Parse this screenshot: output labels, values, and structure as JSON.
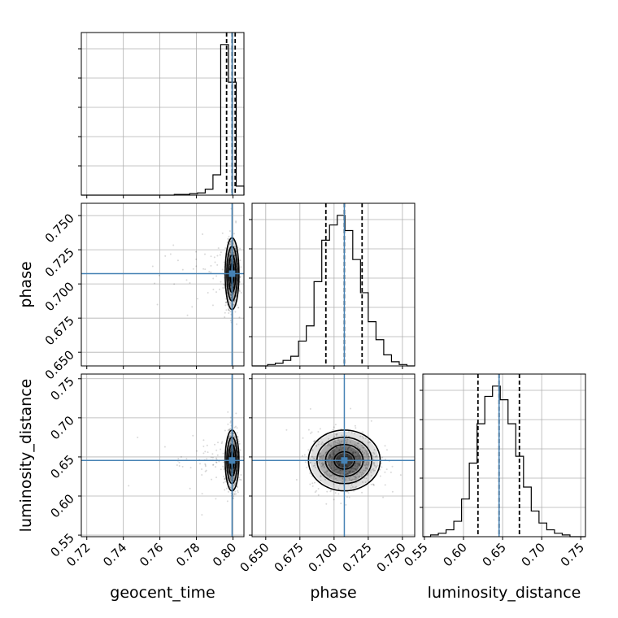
{
  "chart_data": {
    "type": "corner",
    "parameters": [
      "geocent_time",
      "phase",
      "luminosity_distance"
    ],
    "ticks": {
      "geocent_time": [
        "0.72",
        "0.74",
        "0.76",
        "0.78",
        "0.80"
      ],
      "phase": [
        "0.650",
        "0.675",
        "0.700",
        "0.725",
        "0.750"
      ],
      "luminosity_distance": [
        "0.55",
        "0.60",
        "0.65",
        "0.70",
        "0.75"
      ]
    },
    "ranges": {
      "geocent_time": [
        0.717,
        0.806
      ],
      "phase": [
        0.64,
        0.759
      ],
      "luminosity_distance": [
        0.548,
        0.756
      ]
    },
    "truths": {
      "geocent_time": 0.7995,
      "phase": 0.7075,
      "luminosity_distance": 0.6455
    },
    "quantiles": {
      "geocent_time": [
        0.7965,
        0.7995,
        0.8012
      ],
      "phase": [
        0.694,
        0.7075,
        0.7205
      ],
      "luminosity_distance": [
        0.6185,
        0.6455,
        0.6715
      ]
    },
    "histograms": {
      "geocent_time": {
        "edges_range": [
          0.717,
          0.806
        ],
        "counts": [
          0,
          0,
          0,
          0,
          0,
          0,
          0,
          0,
          0,
          0,
          0,
          0,
          1,
          1,
          2,
          3,
          8,
          27,
          200,
          150,
          12
        ]
      },
      "phase": {
        "edges_range": [
          0.64,
          0.759
        ],
        "counts": [
          0,
          0,
          1,
          2,
          4,
          7,
          18,
          29,
          61,
          91,
          102,
          109,
          98,
          77,
          53,
          32,
          19,
          8,
          3,
          1,
          0
        ]
      },
      "luminosity_distance": {
        "edges_range": [
          0.548,
          0.756
        ],
        "counts": [
          0,
          1,
          2,
          4,
          9,
          22,
          43,
          66,
          82,
          88,
          80,
          66,
          47,
          29,
          15,
          8,
          4,
          2,
          1,
          0,
          0
        ]
      }
    },
    "grid": true,
    "xlabel_row": [
      "geocent_time",
      "phase",
      "luminosity_distance"
    ],
    "ylabels": [
      "phase",
      "luminosity_distance"
    ],
    "colors": {
      "truth": "#4682b4",
      "histogram": "#000000",
      "grid": "#b0b0b0",
      "scatter": "#000000"
    }
  }
}
